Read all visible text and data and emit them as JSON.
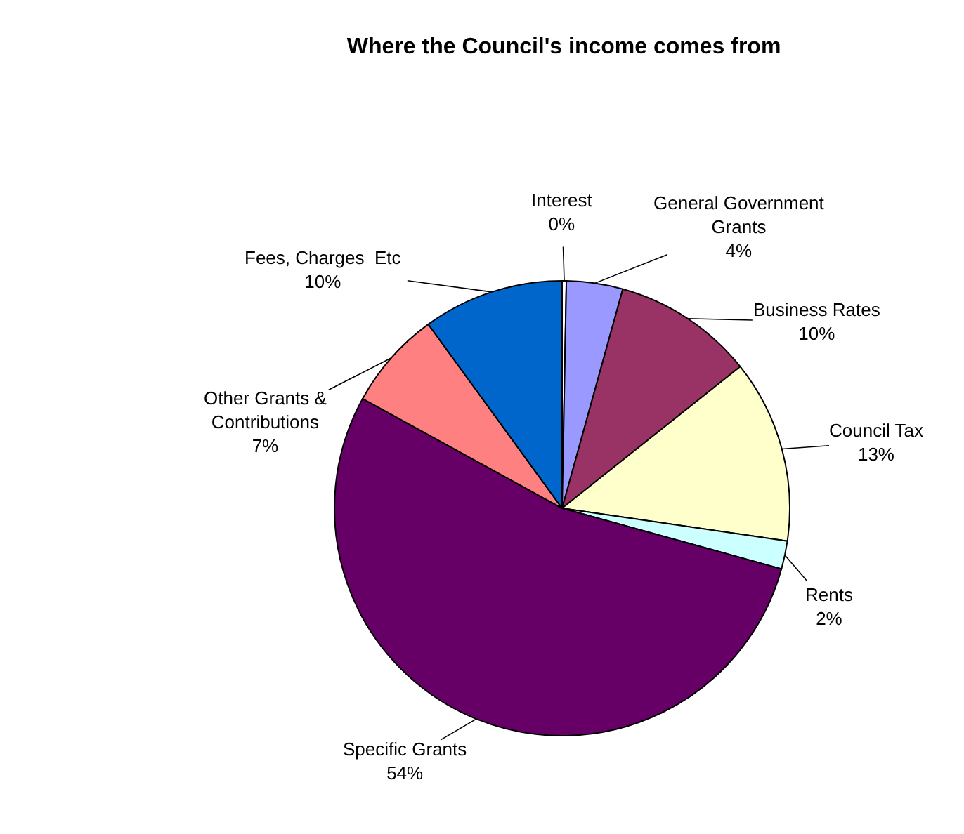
{
  "chart_data": {
    "type": "pie",
    "title": "Where the Council's income comes from",
    "categories": [
      "Interest",
      "General Government Grants",
      "Business Rates",
      "Council Tax",
      "Rents",
      "Specific Grants",
      "Other Grants & Contributions",
      "Fees, Charges  Etc"
    ],
    "values": [
      0.3,
      4,
      10,
      13,
      2,
      53.7,
      7,
      10
    ],
    "value_labels": [
      "0%",
      "4%",
      "10%",
      "13%",
      "2%",
      "54%",
      "7%",
      "10%"
    ],
    "colors": [
      "#ffffff",
      "#9999ff",
      "#993366",
      "#ffffcc",
      "#ccffff",
      "#660066",
      "#ff8080",
      "#0066cc"
    ],
    "legend": false
  }
}
